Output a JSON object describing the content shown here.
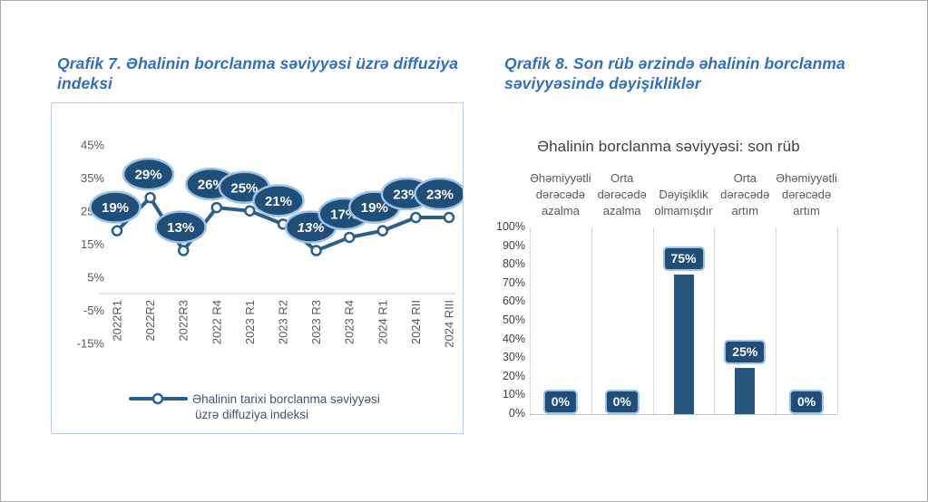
{
  "page": {
    "background": "#ffffff",
    "border_color": "#ababab"
  },
  "left_panel": {
    "title": "Qrafik 7. Əhalinin borclanma səviyyəsi üzrə diffuziya indeksi"
  },
  "right_panel": {
    "title": "Qrafik 8. Son rüb ərzində əhalinin borclanma səviyyəsində dəyişikliklər"
  },
  "colors": {
    "title_blue": "#2e6fc0",
    "navy_fill": "#1f4e79",
    "line_blue": "#2a5f8c",
    "halo_blue": "#9dc3e6",
    "bar_navy": "#27567c",
    "grid_gray": "#d9d9d9",
    "tick_gray": "#595959",
    "legend_text": "#44546a",
    "chart_title_gray": "#3f3f3f",
    "axis_label_dark": "#404040"
  },
  "chart_data": [
    {
      "type": "line",
      "title": "",
      "categories": [
        "2022R1",
        "2022R2",
        "2022R3",
        "2022 R4",
        "2023 R1",
        "2023 R2",
        "2023 R3",
        "2023 R4",
        "2024 R1",
        "2024 RII",
        "2024 RIII"
      ],
      "series": [
        {
          "name": "Əhalinin tarixi borclanma səviyyəsi üzrə diffuziya indeksi",
          "values": [
            19,
            29,
            13,
            26,
            25,
            21,
            13,
            17,
            19,
            23,
            23
          ]
        }
      ],
      "data_labels": [
        "19%",
        "29%",
        "13%",
        "26%",
        "25%",
        "21%",
        "13%",
        "17%",
        "19%",
        "23%",
        "23%"
      ],
      "italic_label_index": 6,
      "y_ticks": [
        45,
        35,
        25,
        15,
        5,
        -5,
        -15
      ],
      "y_tick_labels": [
        "45%",
        "35%",
        "25%",
        "15%",
        "5%",
        "-5%",
        "-15%"
      ],
      "ylim": [
        -15,
        45
      ],
      "grid": "off",
      "marker": "open-circle",
      "legend_position": "bottom",
      "legend_lines": [
        "Əhalinin tarixi borclanma səviyyəsi",
        "üzrə diffuziya indeksi"
      ]
    },
    {
      "type": "bar",
      "title": "Əhalinin borclanma səviyyəsi: son rüb",
      "categories": [
        "Əhəmiyyətli dərəcədə azalma",
        "Orta dərəcədə azalma",
        "Dəyişiklik olmamışdır",
        "Orta dərəcədə artım",
        "Əhəmiyyətli dərəcədə artım"
      ],
      "values": [
        0,
        0,
        75,
        25,
        0
      ],
      "data_labels": [
        "0%",
        "0%",
        "75%",
        "25%",
        "0%"
      ],
      "y_ticks": [
        100,
        90,
        80,
        70,
        60,
        50,
        40,
        30,
        20,
        10,
        0
      ],
      "y_tick_labels": [
        "100%",
        "90%",
        "80%",
        "70%",
        "60%",
        "50%",
        "40%",
        "30%",
        "20%",
        "10%",
        "0%"
      ],
      "ylim": [
        0,
        100
      ],
      "grid": "column-separators",
      "legend_position": "none"
    }
  ]
}
